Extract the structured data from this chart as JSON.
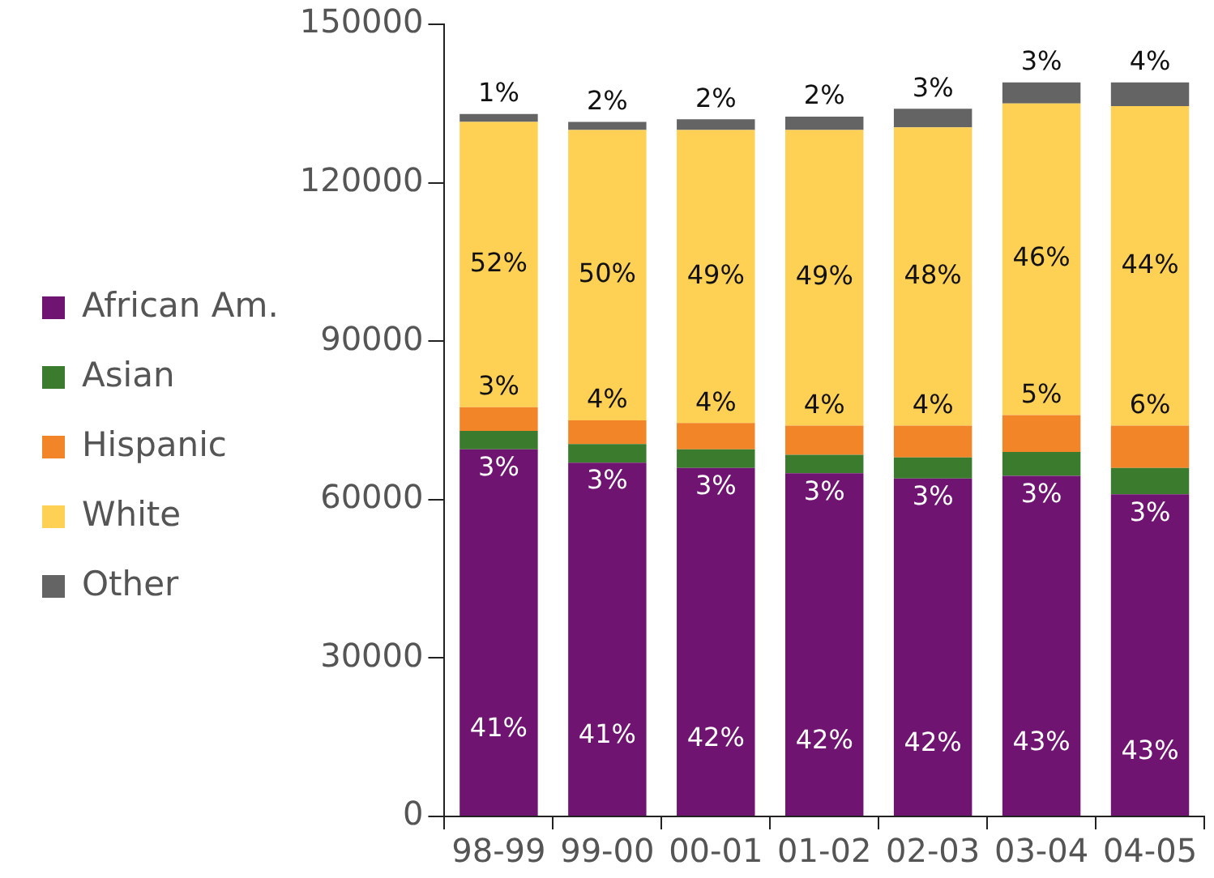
{
  "chart_data": {
    "type": "bar",
    "stacked": true,
    "categories": [
      "98-99",
      "99-00",
      "00-01",
      "01-02",
      "02-03",
      "03-04",
      "04-05"
    ],
    "ylim": [
      0,
      150000
    ],
    "yticks": [
      0,
      30000,
      60000,
      90000,
      120000,
      150000
    ],
    "grid": false,
    "legend": "left",
    "series": [
      {
        "name": "African Am.",
        "color": "#6f1470",
        "values": [
          69500,
          67000,
          66000,
          65000,
          64000,
          64500,
          61000
        ]
      },
      {
        "name": "Asian",
        "color": "#3a7b2e",
        "values": [
          3500,
          3500,
          3500,
          3500,
          4000,
          4500,
          5000
        ]
      },
      {
        "name": "Hispanic",
        "color": "#f28528",
        "values": [
          4500,
          4500,
          5000,
          5500,
          6000,
          7000,
          8000
        ]
      },
      {
        "name": "White",
        "color": "#fed053",
        "values": [
          54000,
          55000,
          55500,
          56000,
          56500,
          59000,
          60500
        ]
      },
      {
        "name": "Other",
        "color": "#646464",
        "values": [
          1500,
          1500,
          2000,
          2500,
          3500,
          4000,
          4500
        ]
      }
    ],
    "annotations": [
      "41%",
      "3%",
      "3%",
      "52%",
      "1%",
      "41%",
      "3%",
      "4%",
      "50%",
      "2%",
      "42%",
      "3%",
      "4%",
      "49%",
      "2%",
      "42%",
      "3%",
      "4%",
      "49%",
      "2%",
      "42%",
      "3%",
      "4%",
      "48%",
      "3%",
      "43%",
      "3%",
      "5%",
      "46%",
      "3%",
      "43%",
      "3%",
      "6%",
      "44%",
      "4%"
    ]
  }
}
